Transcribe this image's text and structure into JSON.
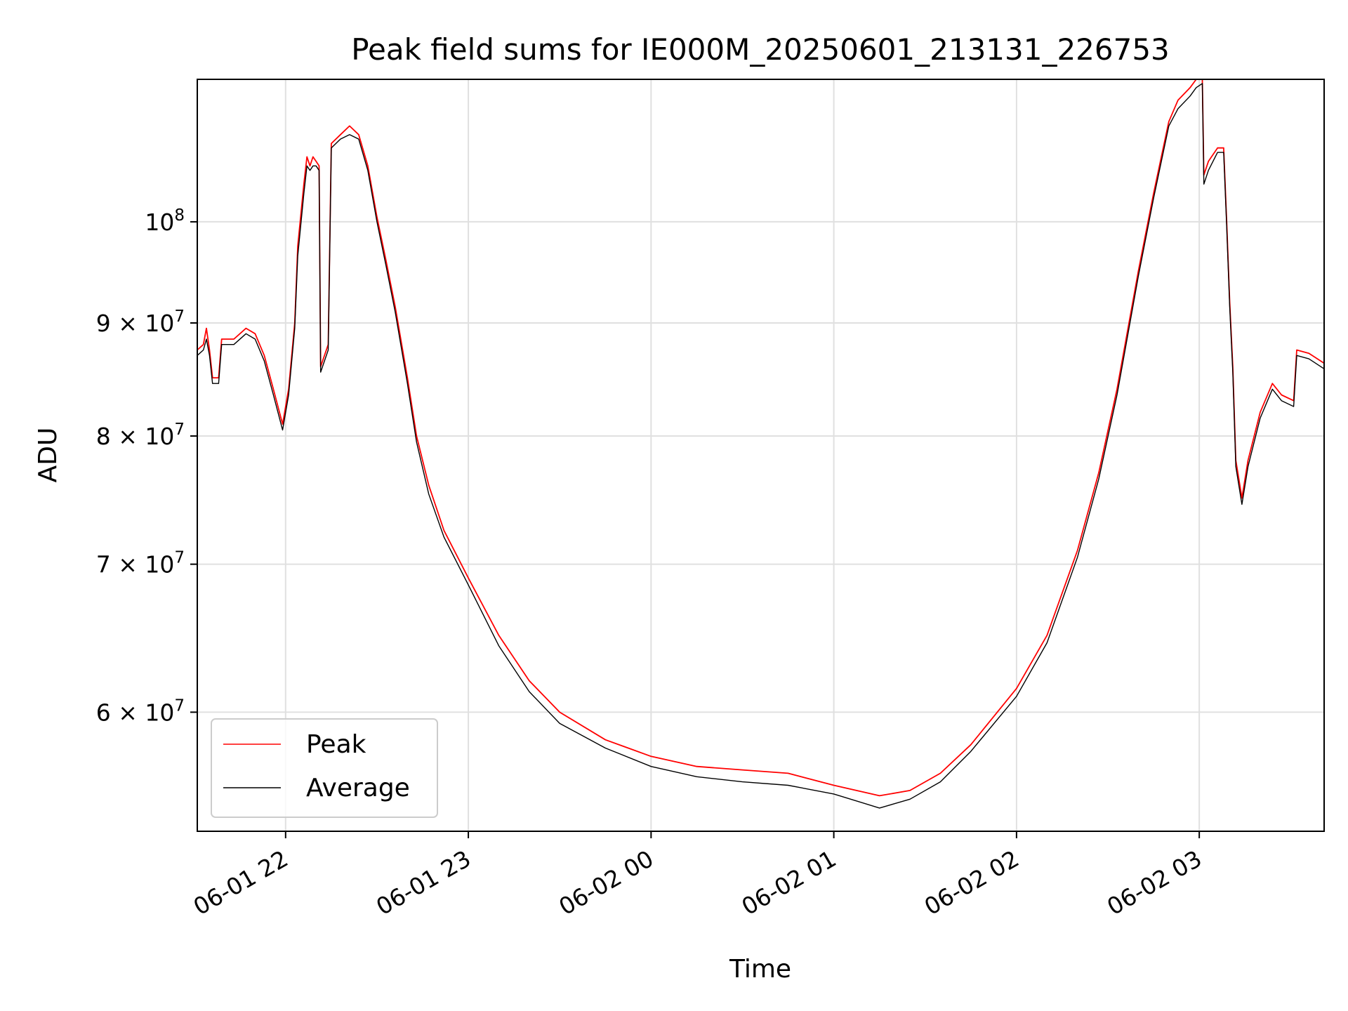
{
  "chart_data": {
    "type": "line",
    "title": "Peak field sums for IE000M_20250601_213131_226753",
    "xlabel": "Time",
    "ylabel": "ADU",
    "yscale": "log",
    "ylim": [
      53000000,
      116000000
    ],
    "xlim": [
      "2025-06-01 21:31",
      "2025-06-02 03:41"
    ],
    "grid": true,
    "legend_position": "lower-left",
    "x_ticks": [
      {
        "time": "2025-06-01 22:00",
        "label": "06-01 22"
      },
      {
        "time": "2025-06-01 23:00",
        "label": "06-01 23"
      },
      {
        "time": "2025-06-02 00:00",
        "label": "06-02 00"
      },
      {
        "time": "2025-06-02 01:00",
        "label": "06-02 01"
      },
      {
        "time": "2025-06-02 02:00",
        "label": "06-02 02"
      },
      {
        "time": "2025-06-02 03:00",
        "label": "06-02 03"
      }
    ],
    "y_ticks": [
      {
        "value": 60000000,
        "mantissa": "6 × 10",
        "exp": "7"
      },
      {
        "value": 70000000,
        "mantissa": "7 × 10",
        "exp": "7"
      },
      {
        "value": 80000000,
        "mantissa": "8 × 10",
        "exp": "7"
      },
      {
        "value": 90000000,
        "mantissa": "9 × 10",
        "exp": "7"
      },
      {
        "value": 100000000,
        "mantissa": "10",
        "exp": "8"
      }
    ],
    "series": [
      {
        "name": "Peak",
        "color": "#ff0000",
        "points": [
          [
            "2025-06-01 21:31",
            87500000
          ],
          [
            "2025-06-01 21:33",
            88000000
          ],
          [
            "2025-06-01 21:34",
            89500000
          ],
          [
            "2025-06-01 21:35",
            87500000
          ],
          [
            "2025-06-01 21:36",
            85000000
          ],
          [
            "2025-06-01 21:38",
            85000000
          ],
          [
            "2025-06-01 21:39",
            88500000
          ],
          [
            "2025-06-01 21:43",
            88500000
          ],
          [
            "2025-06-01 21:47",
            89500000
          ],
          [
            "2025-06-01 21:50",
            89000000
          ],
          [
            "2025-06-01 21:53",
            87000000
          ],
          [
            "2025-06-01 21:56",
            84000000
          ],
          [
            "2025-06-01 21:59",
            81000000
          ],
          [
            "2025-06-01 22:01",
            84000000
          ],
          [
            "2025-06-01 22:03",
            90000000
          ],
          [
            "2025-06-01 22:04",
            97500000
          ],
          [
            "2025-06-01 22:06",
            104000000
          ],
          [
            "2025-06-01 22:07",
            107000000
          ],
          [
            "2025-06-01 22:08",
            106000000
          ],
          [
            "2025-06-01 22:09",
            107000000
          ],
          [
            "2025-06-01 22:10",
            106500000
          ],
          [
            "2025-06-01 22:11",
            106000000
          ],
          [
            "2025-06-01 22:11.5",
            86000000
          ],
          [
            "2025-06-01 22:14",
            88000000
          ],
          [
            "2025-06-01 22:15",
            108500000
          ],
          [
            "2025-06-01 22:18",
            109500000
          ],
          [
            "2025-06-01 22:21",
            110500000
          ],
          [
            "2025-06-01 22:24",
            109500000
          ],
          [
            "2025-06-01 22:27",
            106000000
          ],
          [
            "2025-06-01 22:30",
            100500000
          ],
          [
            "2025-06-01 22:33",
            96000000
          ],
          [
            "2025-06-01 22:36",
            91500000
          ],
          [
            "2025-06-01 22:40",
            85000000
          ],
          [
            "2025-06-01 22:43",
            80000000
          ],
          [
            "2025-06-01 22:47",
            76000000
          ],
          [
            "2025-06-01 22:52",
            72500000
          ],
          [
            "2025-06-01 23:00",
            69000000
          ],
          [
            "2025-06-01 23:10",
            65000000
          ],
          [
            "2025-06-01 23:20",
            62000000
          ],
          [
            "2025-06-01 23:30",
            60000000
          ],
          [
            "2025-06-01 23:45",
            58300000
          ],
          [
            "2025-06-02 00:00",
            57300000
          ],
          [
            "2025-06-02 00:15",
            56700000
          ],
          [
            "2025-06-02 00:30",
            56500000
          ],
          [
            "2025-06-02 00:45",
            56300000
          ],
          [
            "2025-06-02 01:00",
            55600000
          ],
          [
            "2025-06-02 01:15",
            55000000
          ],
          [
            "2025-06-02 01:25",
            55300000
          ],
          [
            "2025-06-02 01:35",
            56300000
          ],
          [
            "2025-06-02 01:45",
            58000000
          ],
          [
            "2025-06-02 02:00",
            61500000
          ],
          [
            "2025-06-02 02:10",
            65000000
          ],
          [
            "2025-06-02 02:20",
            71000000
          ],
          [
            "2025-06-02 02:27",
            77000000
          ],
          [
            "2025-06-02 02:33",
            84000000
          ],
          [
            "2025-06-02 02:40",
            95000000
          ],
          [
            "2025-06-02 02:45",
            103000000
          ],
          [
            "2025-06-02 02:50",
            111000000
          ],
          [
            "2025-06-02 02:53",
            113500000
          ],
          [
            "2025-06-02 02:57",
            115000000
          ],
          [
            "2025-06-02 02:59",
            116000000
          ],
          [
            "2025-06-02 03:01",
            116000000
          ],
          [
            "2025-06-02 03:01.5",
            105000000
          ],
          [
            "2025-06-02 03:03",
            106500000
          ],
          [
            "2025-06-02 03:06",
            108000000
          ],
          [
            "2025-06-02 03:08",
            108000000
          ],
          [
            "2025-06-02 03:09",
            100000000
          ],
          [
            "2025-06-02 03:10",
            92000000
          ],
          [
            "2025-06-02 03:11",
            86000000
          ],
          [
            "2025-06-02 03:12",
            78000000
          ],
          [
            "2025-06-02 03:14",
            75000000
          ],
          [
            "2025-06-02 03:16",
            78000000
          ],
          [
            "2025-06-02 03:20",
            82000000
          ],
          [
            "2025-06-02 03:24",
            84500000
          ],
          [
            "2025-06-02 03:27",
            83500000
          ],
          [
            "2025-06-02 03:31",
            83000000
          ],
          [
            "2025-06-02 03:32",
            87500000
          ],
          [
            "2025-06-02 03:36",
            87200000
          ],
          [
            "2025-06-02 03:41",
            86300000
          ]
        ]
      },
      {
        "name": "Average",
        "color": "#000000",
        "points": [
          [
            "2025-06-01 21:31",
            87000000
          ],
          [
            "2025-06-01 21:33",
            87500000
          ],
          [
            "2025-06-01 21:34",
            88500000
          ],
          [
            "2025-06-01 21:35",
            87000000
          ],
          [
            "2025-06-01 21:36",
            84500000
          ],
          [
            "2025-06-01 21:38",
            84500000
          ],
          [
            "2025-06-01 21:39",
            88000000
          ],
          [
            "2025-06-01 21:43",
            88000000
          ],
          [
            "2025-06-01 21:47",
            89000000
          ],
          [
            "2025-06-01 21:50",
            88500000
          ],
          [
            "2025-06-01 21:53",
            86500000
          ],
          [
            "2025-06-01 21:56",
            83500000
          ],
          [
            "2025-06-01 21:59",
            80500000
          ],
          [
            "2025-06-01 22:01",
            83500000
          ],
          [
            "2025-06-01 22:03",
            89500000
          ],
          [
            "2025-06-01 22:04",
            96500000
          ],
          [
            "2025-06-01 22:06",
            103000000
          ],
          [
            "2025-06-01 22:07",
            106000000
          ],
          [
            "2025-06-01 22:08",
            105500000
          ],
          [
            "2025-06-01 22:09",
            106000000
          ],
          [
            "2025-06-01 22:10",
            106000000
          ],
          [
            "2025-06-01 22:11",
            105500000
          ],
          [
            "2025-06-01 22:11.5",
            85500000
          ],
          [
            "2025-06-01 22:14",
            87500000
          ],
          [
            "2025-06-01 22:15",
            108000000
          ],
          [
            "2025-06-01 22:18",
            109000000
          ],
          [
            "2025-06-01 22:21",
            109500000
          ],
          [
            "2025-06-01 22:24",
            109000000
          ],
          [
            "2025-06-01 22:27",
            105500000
          ],
          [
            "2025-06-01 22:30",
            100000000
          ],
          [
            "2025-06-01 22:33",
            95500000
          ],
          [
            "2025-06-01 22:36",
            91000000
          ],
          [
            "2025-06-01 22:40",
            84500000
          ],
          [
            "2025-06-01 22:43",
            79500000
          ],
          [
            "2025-06-01 22:47",
            75300000
          ],
          [
            "2025-06-01 22:52",
            72000000
          ],
          [
            "2025-06-01 23:00",
            68500000
          ],
          [
            "2025-06-01 23:10",
            64300000
          ],
          [
            "2025-06-01 23:20",
            61300000
          ],
          [
            "2025-06-01 23:30",
            59300000
          ],
          [
            "2025-06-01 23:45",
            57800000
          ],
          [
            "2025-06-02 00:00",
            56700000
          ],
          [
            "2025-06-02 00:15",
            56100000
          ],
          [
            "2025-06-02 00:30",
            55800000
          ],
          [
            "2025-06-02 00:45",
            55600000
          ],
          [
            "2025-06-02 01:00",
            55100000
          ],
          [
            "2025-06-02 01:15",
            54300000
          ],
          [
            "2025-06-02 01:25",
            54800000
          ],
          [
            "2025-06-02 01:35",
            55800000
          ],
          [
            "2025-06-02 01:45",
            57600000
          ],
          [
            "2025-06-02 02:00",
            61000000
          ],
          [
            "2025-06-02 02:10",
            64500000
          ],
          [
            "2025-06-02 02:20",
            70500000
          ],
          [
            "2025-06-02 02:27",
            76500000
          ],
          [
            "2025-06-02 02:33",
            83500000
          ],
          [
            "2025-06-02 02:40",
            94500000
          ],
          [
            "2025-06-02 02:45",
            102500000
          ],
          [
            "2025-06-02 02:50",
            110500000
          ],
          [
            "2025-06-02 02:53",
            112500000
          ],
          [
            "2025-06-02 02:57",
            114000000
          ],
          [
            "2025-06-02 02:59",
            115000000
          ],
          [
            "2025-06-02 03:01",
            115500000
          ],
          [
            "2025-06-02 03:01.5",
            104000000
          ],
          [
            "2025-06-02 03:03",
            105500000
          ],
          [
            "2025-06-02 03:06",
            107500000
          ],
          [
            "2025-06-02 03:08",
            107500000
          ],
          [
            "2025-06-02 03:09",
            99500000
          ],
          [
            "2025-06-02 03:10",
            91500000
          ],
          [
            "2025-06-02 03:11",
            85500000
          ],
          [
            "2025-06-02 03:12",
            77500000
          ],
          [
            "2025-06-02 03:14",
            74500000
          ],
          [
            "2025-06-02 03:16",
            77500000
          ],
          [
            "2025-06-02 03:20",
            81500000
          ],
          [
            "2025-06-02 03:24",
            84000000
          ],
          [
            "2025-06-02 03:27",
            83000000
          ],
          [
            "2025-06-02 03:31",
            82500000
          ],
          [
            "2025-06-02 03:32",
            87000000
          ],
          [
            "2025-06-02 03:36",
            86700000
          ],
          [
            "2025-06-02 03:41",
            85800000
          ]
        ]
      }
    ]
  }
}
